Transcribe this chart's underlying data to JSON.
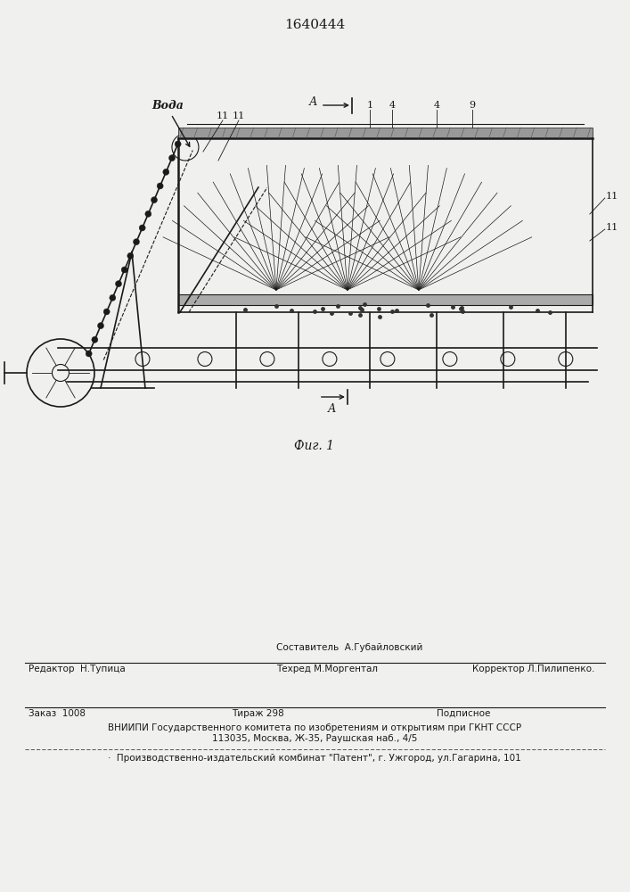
{
  "patent_number": "1640444",
  "fig_label": "Фиг. 1",
  "section_label": "А",
  "water_label": "Вода",
  "bg_color": "#f0f0ee",
  "line_color": "#1a1a1a",
  "footer_line1_center_top": "Составитель  А.Губайловский",
  "footer_line1_left": "Редактор  Н.Тупица",
  "footer_line1_center": "Техред М.Моргентал",
  "footer_line1_right": "Корректор Л.Пилипенко.",
  "footer_line2_col1": "Заказ  1008",
  "footer_line2_col2": "Тираж 298",
  "footer_line2_col3": "Подписное",
  "footer_line3": "ВНИИПИ Государственного комитета по изобретениям и открытиям при ГКНТ СССР",
  "footer_line4": "113035, Москва, Ж-35, Раушская наб., 4/5",
  "footer_line5": "Производственно-издательский комбинат \"Патент\", г. Ужгород, ул.Гагарина, 101"
}
